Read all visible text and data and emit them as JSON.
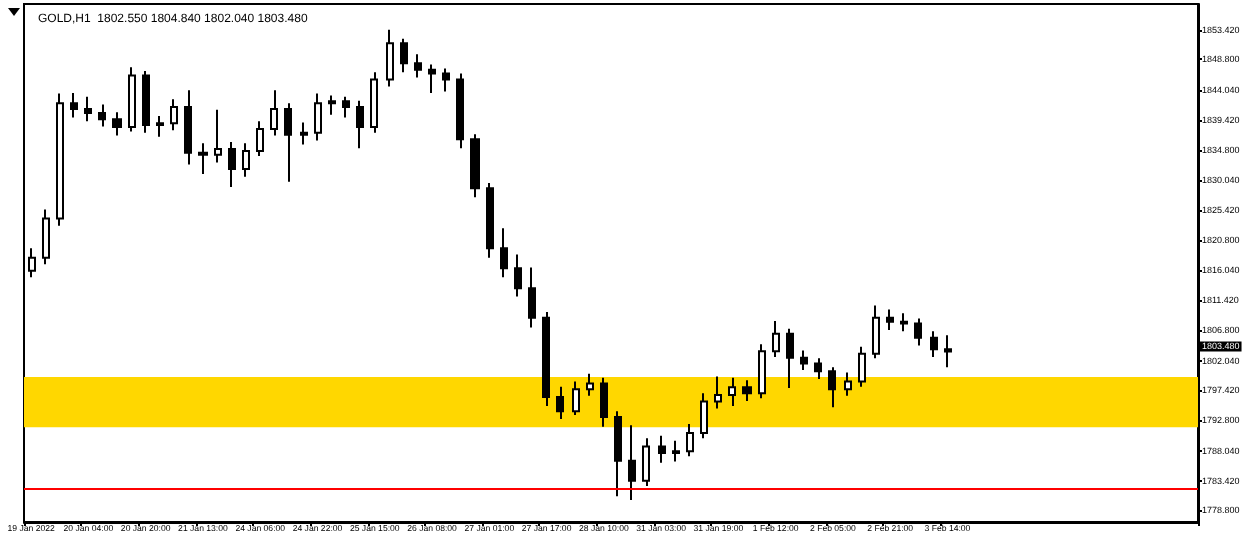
{
  "chart_data": {
    "type": "candlestick",
    "title": "GOLD,H1  1802.550 1804.840 1802.040 1803.480",
    "color": "#000000",
    "categories": [
      "19 Jan 2022",
      null,
      null,
      null,
      "20 Jan 04:00",
      null,
      null,
      null,
      "20 Jan 20:00",
      null,
      null,
      null,
      "21 Jan 13:00",
      null,
      null,
      null,
      "24 Jan 06:00",
      null,
      null,
      null,
      "24 Jan 22:00",
      null,
      null,
      null,
      "25 Jan 15:00",
      null,
      null,
      null,
      "26 Jan 08:00",
      null,
      null,
      null,
      "27 Jan 01:00",
      null,
      null,
      null,
      "27 Jan 17:00",
      null,
      null,
      null,
      "28 Jan 10:00",
      null,
      null,
      null,
      "31 Jan 03:00",
      null,
      null,
      null,
      "31 Jan 19:00",
      null,
      null,
      null,
      "1 Feb 12:00",
      null,
      null,
      null,
      "2 Feb 05:00",
      null,
      null,
      null,
      "2 Feb 21:00",
      null,
      null,
      null,
      "3 Feb 14:00",
      null,
      null,
      null,
      null,
      null,
      null,
      null,
      null,
      null,
      null,
      null,
      null,
      null,
      null,
      null,
      null,
      null
    ],
    "ohlc": [
      [
        1816.0,
        1819.5,
        1815.0,
        1818.0
      ],
      [
        1818.0,
        1825.5,
        1817.0,
        1824.1
      ],
      [
        1824.1,
        1843.5,
        1823.0,
        1842.0
      ],
      [
        1842.0,
        1843.6,
        1839.8,
        1841.1
      ],
      [
        1841.1,
        1843.0,
        1839.2,
        1840.5
      ],
      [
        1840.5,
        1841.8,
        1838.4,
        1839.5
      ],
      [
        1839.5,
        1840.6,
        1837.0,
        1838.3
      ],
      [
        1838.3,
        1847.6,
        1837.6,
        1846.3
      ],
      [
        1846.3,
        1847.0,
        1837.4,
        1838.6
      ],
      [
        1838.6,
        1840.0,
        1836.8,
        1838.9
      ],
      [
        1838.9,
        1842.6,
        1837.8,
        1841.4
      ],
      [
        1841.4,
        1844.0,
        1832.5,
        1834.3
      ],
      [
        1834.3,
        1835.8,
        1831.0,
        1834.0
      ],
      [
        1834.0,
        1841.0,
        1832.8,
        1834.9
      ],
      [
        1834.9,
        1836.0,
        1829.0,
        1831.8
      ],
      [
        1831.8,
        1835.8,
        1830.6,
        1834.6
      ],
      [
        1834.6,
        1839.2,
        1833.8,
        1838.0
      ],
      [
        1838.0,
        1844.0,
        1837.0,
        1841.1
      ],
      [
        1841.1,
        1842.0,
        1829.8,
        1837.1
      ],
      [
        1837.1,
        1839.0,
        1835.6,
        1837.4
      ],
      [
        1837.4,
        1843.5,
        1836.2,
        1842.0
      ],
      [
        1842.0,
        1843.2,
        1840.2,
        1842.3
      ],
      [
        1842.3,
        1843.0,
        1839.8,
        1841.4
      ],
      [
        1841.4,
        1842.4,
        1835.0,
        1838.3
      ],
      [
        1838.3,
        1846.8,
        1837.4,
        1845.7
      ],
      [
        1845.7,
        1853.4,
        1844.6,
        1851.3
      ],
      [
        1851.3,
        1852.0,
        1846.8,
        1848.2
      ],
      [
        1848.2,
        1849.6,
        1846.0,
        1847.2
      ],
      [
        1847.2,
        1848.0,
        1843.6,
        1846.6
      ],
      [
        1846.6,
        1847.4,
        1843.8,
        1845.7
      ],
      [
        1845.7,
        1846.6,
        1835.0,
        1836.4
      ],
      [
        1836.4,
        1837.2,
        1827.4,
        1828.8
      ],
      [
        1828.8,
        1829.6,
        1818.0,
        1819.5
      ],
      [
        1819.5,
        1822.6,
        1815.0,
        1816.4
      ],
      [
        1816.4,
        1818.5,
        1812.0,
        1813.3
      ],
      [
        1813.3,
        1816.5,
        1807.2,
        1808.7
      ],
      [
        1808.7,
        1809.6,
        1795.0,
        1796.4
      ],
      [
        1796.4,
        1798.0,
        1793.0,
        1794.2
      ],
      [
        1794.2,
        1798.8,
        1793.6,
        1797.6
      ],
      [
        1797.6,
        1800.0,
        1796.6,
        1798.5
      ],
      [
        1798.5,
        1799.4,
        1791.8,
        1793.3
      ],
      [
        1793.3,
        1794.2,
        1781.0,
        1786.5
      ],
      [
        1786.5,
        1792.0,
        1780.4,
        1783.4
      ],
      [
        1783.4,
        1790.0,
        1782.6,
        1788.7
      ],
      [
        1788.7,
        1790.4,
        1786.2,
        1787.7
      ],
      [
        1787.7,
        1789.6,
        1786.4,
        1788.0
      ],
      [
        1788.0,
        1792.2,
        1787.2,
        1790.8
      ],
      [
        1790.8,
        1797.0,
        1790.0,
        1795.7
      ],
      [
        1795.7,
        1799.6,
        1794.6,
        1796.7
      ],
      [
        1796.7,
        1799.4,
        1795.0,
        1797.9
      ],
      [
        1797.9,
        1799.0,
        1795.8,
        1797.0
      ],
      [
        1797.0,
        1804.6,
        1796.2,
        1803.5
      ],
      [
        1803.5,
        1808.2,
        1802.6,
        1806.2
      ],
      [
        1806.2,
        1807.0,
        1797.8,
        1802.5
      ],
      [
        1802.5,
        1803.6,
        1800.6,
        1801.6
      ],
      [
        1801.6,
        1802.4,
        1799.2,
        1800.4
      ],
      [
        1800.4,
        1801.0,
        1794.8,
        1797.6
      ],
      [
        1797.6,
        1800.2,
        1796.6,
        1798.8
      ],
      [
        1798.8,
        1804.2,
        1798.0,
        1803.1
      ],
      [
        1803.1,
        1810.6,
        1802.4,
        1808.7
      ],
      [
        1808.7,
        1810.0,
        1806.8,
        1808.1
      ],
      [
        1808.1,
        1809.4,
        1806.6,
        1807.8
      ],
      [
        1807.8,
        1808.6,
        1804.4,
        1805.6
      ],
      [
        1805.6,
        1806.6,
        1802.6,
        1803.8
      ],
      [
        1803.8,
        1806.0,
        1801.0,
        1803.48
      ],
      null,
      null,
      null,
      null,
      null,
      null,
      null,
      null,
      null,
      null,
      null,
      null,
      null,
      null,
      null,
      null,
      null
    ],
    "ylim": [
      1777.0,
      1857.4
    ],
    "yticks": [
      {
        "value": 1853.42,
        "label": "1853.420"
      },
      {
        "value": 1848.8,
        "label": "1848.800"
      },
      {
        "value": 1844.04,
        "label": "1844.040"
      },
      {
        "value": 1839.42,
        "label": "1839.420"
      },
      {
        "value": 1834.8,
        "label": "1834.800"
      },
      {
        "value": 1830.04,
        "label": "1830.040"
      },
      {
        "value": 1825.42,
        "label": "1825.420"
      },
      {
        "value": 1820.8,
        "label": "1820.800"
      },
      {
        "value": 1816.04,
        "label": "1816.040"
      },
      {
        "value": 1811.42,
        "label": "1811.420"
      },
      {
        "value": 1806.8,
        "label": "1806.800"
      },
      {
        "value": 1802.04,
        "label": "1802.040"
      },
      {
        "value": 1797.42,
        "label": "1797.420"
      },
      {
        "value": 1792.8,
        "label": "1792.800"
      },
      {
        "value": 1788.04,
        "label": "1788.040"
      },
      {
        "value": 1783.42,
        "label": "1783.420"
      },
      {
        "value": 1778.8,
        "label": "1778.800"
      }
    ],
    "ref_lines": [
      {
        "axis": "y",
        "value": 1782.2,
        "color": "#ff0000"
      }
    ],
    "bands": [
      {
        "axis": "y",
        "from": 1791.7,
        "to": 1799.5,
        "color": "#ffd700"
      }
    ],
    "annotations": [
      "1803.480"
    ],
    "grid": false
  }
}
